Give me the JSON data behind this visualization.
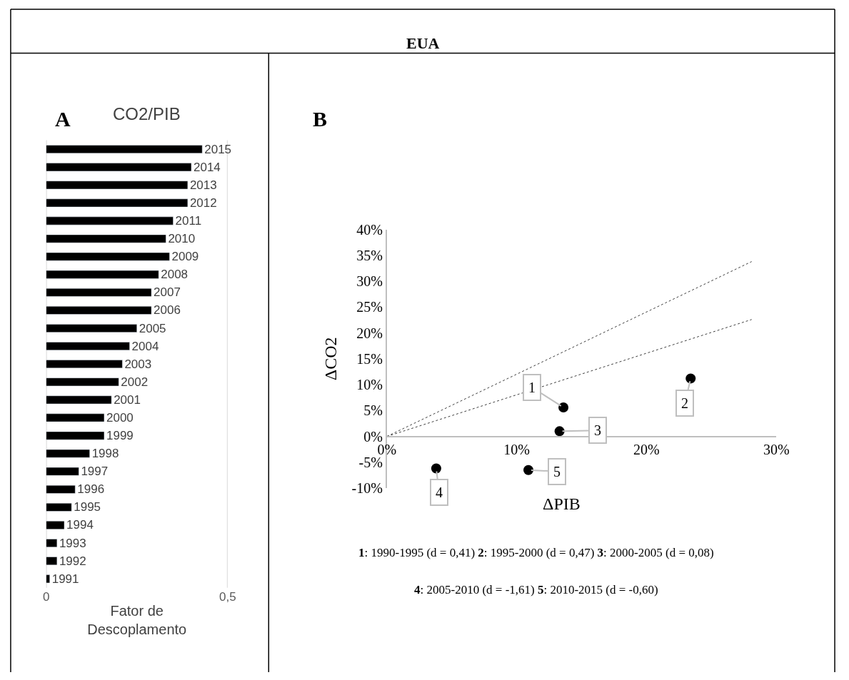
{
  "chart_data": [
    {
      "type": "bar",
      "orientation": "horizontal",
      "title": "CO2/PIB",
      "xlabel": "Fator de Descoplamento",
      "annotations": [
        "EUA",
        "A"
      ],
      "categories": [
        "2015",
        "2014",
        "2013",
        "2012",
        "2011",
        "2010",
        "2009",
        "2008",
        "2007",
        "2006",
        "2005",
        "2004",
        "2003",
        "2002",
        "2001",
        "2000",
        "1999",
        "1998",
        "1997",
        "1996",
        "1995",
        "1994",
        "1993",
        "1992",
        "1991"
      ],
      "values": [
        0.43,
        0.4,
        0.39,
        0.39,
        0.35,
        0.33,
        0.34,
        0.31,
        0.29,
        0.29,
        0.25,
        0.23,
        0.21,
        0.2,
        0.18,
        0.16,
        0.16,
        0.12,
        0.09,
        0.08,
        0.07,
        0.05,
        0.03,
        0.03,
        0.01
      ],
      "color": "#000000",
      "xlim": [
        0,
        0.5
      ],
      "xticks": [
        0,
        {
          "value": 0.5,
          "label": "0,5"
        }
      ],
      "grid": "x",
      "tick_labels": "x"
    },
    {
      "type": "scatter",
      "xlabel": "ΔPIB",
      "ylabel": "ΔCO2",
      "annotations": [
        "B",
        {
          "text": "1",
          "x": 13.6,
          "y": 5.6
        },
        {
          "text": "2",
          "x": 23.4,
          "y": 11.2
        },
        {
          "text": "3",
          "x": 13.3,
          "y": 1.0
        },
        {
          "text": "4",
          "x": 3.8,
          "y": -6.2
        },
        {
          "text": "5",
          "x": 10.9,
          "y": -6.5
        },
        "1: 1990-1995 (d = 0,41) 2: 1995-2000 (d = 0,47) 3: 2000-2005 (d = 0,08)",
        "4: 2005-2010 (d = -1,61) 5: 2010-2015 (d = -0,60)"
      ],
      "series": [
        {
          "type": "scatter",
          "color": "#000000",
          "marker": "circle",
          "x": [
            13.6,
            23.4,
            13.3,
            3.8,
            10.9
          ],
          "values": [
            5.6,
            11.2,
            1.0,
            -6.2,
            -6.5
          ]
        },
        {
          "type": "line",
          "color": "#404040",
          "line_style": "dotted",
          "marker": "none",
          "x": [
            0,
            28.1
          ],
          "values": [
            0,
            33.8
          ]
        },
        {
          "type": "line",
          "color": "#404040",
          "line_style": "dotted",
          "marker": "none",
          "x": [
            0,
            28.1
          ],
          "values": [
            0,
            22.6
          ]
        }
      ],
      "xlim": [
        0,
        30
      ],
      "xticks": [
        {
          "value": 0,
          "label": "0%"
        },
        {
          "value": 10,
          "label": "10%"
        },
        {
          "value": 20,
          "label": "20%"
        },
        {
          "value": 30,
          "label": "30%"
        }
      ],
      "ylim": [
        -10,
        40
      ],
      "yticks": [
        {
          "value": -10,
          "label": "-10%"
        },
        {
          "value": -5,
          "label": "-5%"
        },
        {
          "value": 0,
          "label": "0%"
        },
        {
          "value": 5,
          "label": "5%"
        },
        {
          "value": 10,
          "label": "10%"
        },
        {
          "value": 15,
          "label": "15%"
        },
        {
          "value": 20,
          "label": "20%"
        },
        {
          "value": 25,
          "label": "25%"
        },
        {
          "value": 30,
          "label": "30%"
        },
        {
          "value": 35,
          "label": "35%"
        },
        {
          "value": 40,
          "label": "40%"
        }
      ],
      "grid": false
    }
  ]
}
